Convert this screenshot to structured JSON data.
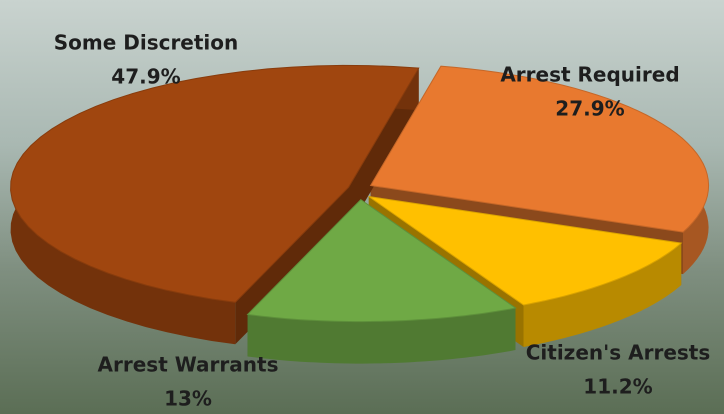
{
  "chart_data": {
    "type": "pie",
    "categories": [
      "Arrest Required",
      "Citizen's Arrests",
      "Arrest Warrants",
      "Some Discretion"
    ],
    "values": [
      27.9,
      11.2,
      13,
      47.9
    ],
    "value_labels": [
      "27.9%",
      "11.2%",
      "13%",
      "47.9%"
    ],
    "colors": [
      "#e8792f",
      "#ffc000",
      "#6fa945",
      "#a0460f"
    ]
  }
}
